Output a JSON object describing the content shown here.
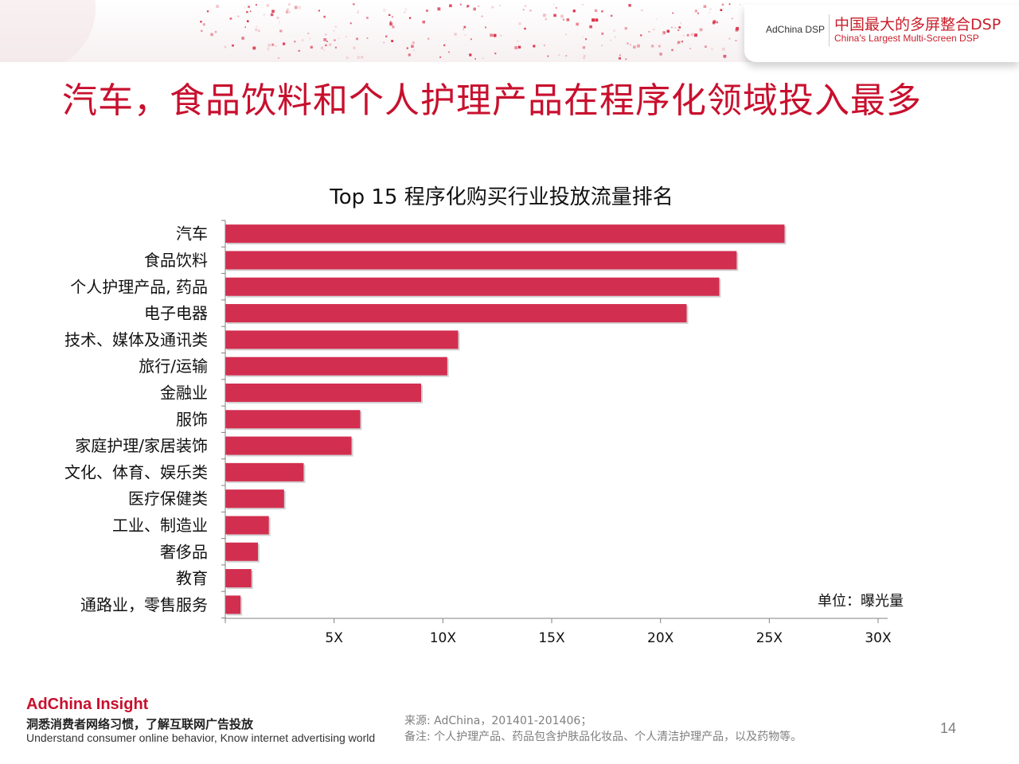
{
  "header": {
    "brand_small": "AdChina DSP",
    "brand_cn": "中国最大的多屏整合DSP",
    "brand_en": "China's Largest Multi-Screen DSP"
  },
  "page_title": "汽车，食品饮料和个人护理产品在程序化领域投入最多",
  "unit_label": "单位：曝光量",
  "footer": {
    "logo": "AdChina Insight",
    "tagline_cn": "洞悉消费者网络习惯，了解互联网广告投放",
    "tagline_en": "Understand consumer online behavior, Know internet advertising world",
    "source_line1": "来源: AdChina，201401-201406；",
    "source_line2": "备注: 个人护理产品、药品包含护肤品化妆品、个人清洁护理产品，以及药物等。",
    "page_number": "14"
  },
  "colors": {
    "accent": "#c8102e",
    "bar": "#d22e50",
    "axis": "#808080"
  },
  "chart_data": {
    "type": "bar",
    "orientation": "horizontal",
    "title": "Top 15 程序化购买行业投放流量排名",
    "categories": [
      "汽车",
      "食品饮料",
      "个人护理产品, 药品",
      "电子电器",
      "技术、媒体及通讯类",
      "旅行/运输",
      "金融业",
      "服饰",
      "家庭护理/家居装饰",
      "文化、体育、娱乐类",
      "医疗保健类",
      "工业、制造业",
      "奢侈品",
      "教育",
      "通路业，零售服务"
    ],
    "values": [
      25.7,
      23.5,
      22.7,
      21.2,
      10.7,
      10.2,
      9.0,
      6.2,
      5.8,
      3.6,
      2.7,
      2.0,
      1.5,
      1.2,
      0.7
    ],
    "xlim": [
      0,
      30
    ],
    "xticks": [
      5,
      10,
      15,
      20,
      25,
      30
    ],
    "xtick_labels": [
      "5X",
      "10X",
      "15X",
      "20X",
      "25X",
      "30X"
    ],
    "grid": false,
    "legend": "none"
  }
}
